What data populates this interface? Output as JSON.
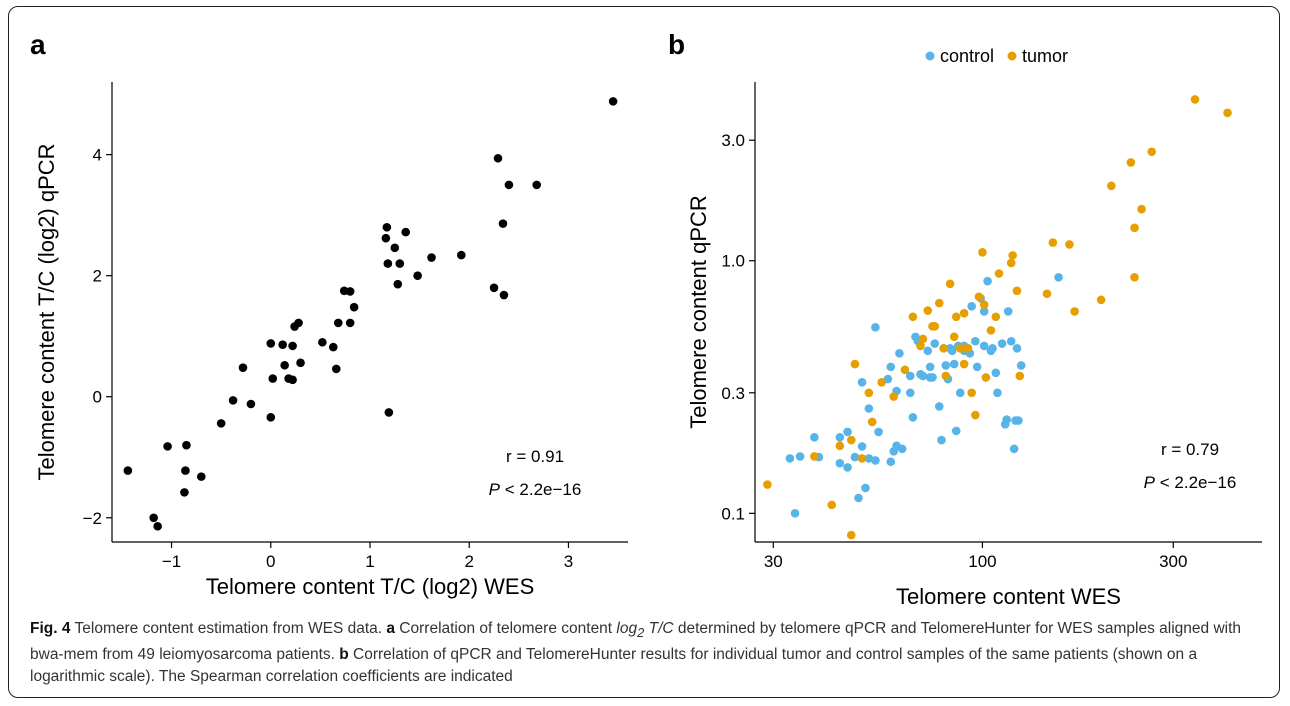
{
  "chart_data": [
    {
      "type": "scatter",
      "panel_label": "a",
      "xlabel": "Telomere content T/C (log2) WES",
      "ylabel": "Telomere content T/C (log2) qPCR",
      "xlim": [
        -1.6,
        3.6
      ],
      "ylim": [
        -2.4,
        5.2
      ],
      "x_ticks": [
        -1,
        1,
        3
      ],
      "x_tick_labels": [
        "−1",
        "1",
        "3"
      ],
      "x_minor_ticks": [
        0,
        2
      ],
      "x_minor_tick_labels": [
        "0",
        "2"
      ],
      "y_ticks": [
        -2,
        0,
        2,
        4
      ],
      "y_tick_labels": [
        "−2",
        "0",
        "2",
        "4"
      ],
      "grid": false,
      "annotation_r": "r = 0.91",
      "annotation_p_symbol": "P",
      "annotation_p_rest": " < 2.2e−16",
      "series": [
        {
          "color": "#000000",
          "points": [
            [
              -1.44,
              -1.22
            ],
            [
              -1.18,
              -2.0
            ],
            [
              -1.14,
              -2.14
            ],
            [
              -1.04,
              -0.82
            ],
            [
              -0.87,
              -1.58
            ],
            [
              -0.86,
              -1.22
            ],
            [
              -0.85,
              -0.8
            ],
            [
              -0.7,
              -1.32
            ],
            [
              -0.5,
              -0.44
            ],
            [
              -0.38,
              -0.06
            ],
            [
              -0.28,
              0.48
            ],
            [
              -0.2,
              -0.12
            ],
            [
              0.0,
              0.88
            ],
            [
              0.0,
              -0.34
            ],
            [
              0.02,
              0.3
            ],
            [
              0.12,
              0.86
            ],
            [
              0.14,
              0.52
            ],
            [
              0.18,
              0.3
            ],
            [
              0.22,
              0.84
            ],
            [
              0.22,
              0.28
            ],
            [
              0.24,
              1.16
            ],
            [
              0.28,
              1.22
            ],
            [
              0.3,
              0.56
            ],
            [
              0.52,
              0.9
            ],
            [
              0.63,
              0.82
            ],
            [
              0.66,
              0.46
            ],
            [
              0.68,
              1.22
            ],
            [
              0.74,
              1.75
            ],
            [
              0.8,
              1.22
            ],
            [
              0.8,
              1.74
            ],
            [
              0.84,
              1.48
            ],
            [
              1.16,
              2.62
            ],
            [
              1.17,
              2.8
            ],
            [
              1.18,
              2.2
            ],
            [
              1.19,
              -0.26
            ],
            [
              1.25,
              2.46
            ],
            [
              1.28,
              1.86
            ],
            [
              1.3,
              2.2
            ],
            [
              1.36,
              2.72
            ],
            [
              1.48,
              2.0
            ],
            [
              1.62,
              2.3
            ],
            [
              1.92,
              2.34
            ],
            [
              2.25,
              1.8
            ],
            [
              2.29,
              3.94
            ],
            [
              2.34,
              2.86
            ],
            [
              2.35,
              1.68
            ],
            [
              2.4,
              3.5
            ],
            [
              2.68,
              3.5
            ],
            [
              3.45,
              4.88
            ]
          ]
        }
      ]
    },
    {
      "type": "scatter",
      "panel_label": "b",
      "scale": "log",
      "xlabel": "Telomere content WES",
      "ylabel": "Telomere content qPCR",
      "xlim": [
        27,
        500
      ],
      "ylim": [
        0.077,
        5.1
      ],
      "x_ticks": [
        30,
        100,
        300
      ],
      "x_tick_labels": [
        "30",
        "100",
        "300"
      ],
      "y_ticks": [
        0.1,
        0.3,
        1.0,
        3.0
      ],
      "y_tick_labels": [
        "0.1",
        "0.3",
        "1.0",
        "3.0"
      ],
      "grid": false,
      "legend_position": "top",
      "annotation_r": "r = 0.79",
      "annotation_p_symbol": "P",
      "annotation_p_rest": " < 2.2e−16",
      "series": [
        {
          "name": "control",
          "color": "#56B4E9",
          "points": [
            [
              33,
              0.165
            ],
            [
              34,
              0.1
            ],
            [
              35,
              0.168
            ],
            [
              38,
              0.2
            ],
            [
              39,
              0.167
            ],
            [
              44,
              0.2
            ],
            [
              44,
              0.158
            ],
            [
              46,
              0.21
            ],
            [
              46,
              0.152
            ],
            [
              48,
              0.167
            ],
            [
              49,
              0.115
            ],
            [
              50,
              0.33
            ],
            [
              50,
              0.184
            ],
            [
              51,
              0.126
            ],
            [
              52,
              0.165
            ],
            [
              52,
              0.26
            ],
            [
              54,
              0.545
            ],
            [
              54,
              0.162
            ],
            [
              55,
              0.21
            ],
            [
              58,
              0.34
            ],
            [
              59,
              0.16
            ],
            [
              59,
              0.38
            ],
            [
              60,
              0.176
            ],
            [
              61,
              0.185
            ],
            [
              61,
              0.305
            ],
            [
              62,
              0.43
            ],
            [
              63,
              0.18
            ],
            [
              66,
              0.3
            ],
            [
              66,
              0.35
            ],
            [
              67,
              0.24
            ],
            [
              68,
              0.5
            ],
            [
              69,
              0.48
            ],
            [
              70,
              0.355
            ],
            [
              71,
              0.35
            ],
            [
              73,
              0.44
            ],
            [
              74,
              0.38
            ],
            [
              74,
              0.345
            ],
            [
              75,
              0.345
            ],
            [
              76,
              0.47
            ],
            [
              78,
              0.265
            ],
            [
              79,
              0.195
            ],
            [
              80,
              0.45
            ],
            [
              81,
              0.385
            ],
            [
              82,
              0.34
            ],
            [
              83,
              0.45
            ],
            [
              84,
              0.44
            ],
            [
              85,
              0.39
            ],
            [
              86,
              0.212
            ],
            [
              87,
              0.46
            ],
            [
              88,
              0.3
            ],
            [
              90,
              0.44
            ],
            [
              90,
              0.46
            ],
            [
              92,
              0.45
            ],
            [
              93,
              0.43
            ],
            [
              94,
              0.66
            ],
            [
              96,
              0.48
            ],
            [
              97,
              0.38
            ],
            [
              99,
              0.71
            ],
            [
              101,
              0.63
            ],
            [
              101,
              0.46
            ],
            [
              103,
              0.83
            ],
            [
              105,
              0.44
            ],
            [
              106,
              0.45
            ],
            [
              108,
              0.36
            ],
            [
              109,
              0.3
            ],
            [
              112,
              0.47
            ],
            [
              114,
              0.225
            ],
            [
              115,
              0.235
            ],
            [
              116,
              0.63
            ],
            [
              118,
              0.48
            ],
            [
              120,
              0.18
            ],
            [
              121,
              0.233
            ],
            [
              122,
              0.45
            ],
            [
              123,
              0.233
            ],
            [
              125,
              0.385
            ],
            [
              155,
              0.86
            ]
          ]
        },
        {
          "name": "tumor",
          "color": "#E69F00",
          "points": [
            [
              29,
              0.13
            ],
            [
              38,
              0.168
            ],
            [
              42,
              0.108
            ],
            [
              44,
              0.185
            ],
            [
              47,
              0.195
            ],
            [
              47,
              0.082
            ],
            [
              48,
              0.39
            ],
            [
              50,
              0.165
            ],
            [
              52,
              0.3
            ],
            [
              53,
              0.23
            ],
            [
              56,
              0.33
            ],
            [
              60,
              0.29
            ],
            [
              64,
              0.37
            ],
            [
              67,
              0.6
            ],
            [
              70,
              0.46
            ],
            [
              71,
              0.49
            ],
            [
              73,
              0.635
            ],
            [
              75,
              0.55
            ],
            [
              76,
              0.55
            ],
            [
              78,
              0.68
            ],
            [
              80,
              0.45
            ],
            [
              81,
              0.35
            ],
            [
              83,
              0.81
            ],
            [
              85,
              0.5
            ],
            [
              86,
              0.6
            ],
            [
              88,
              0.45
            ],
            [
              90,
              0.62
            ],
            [
              90,
              0.39
            ],
            [
              91,
              0.45
            ],
            [
              92,
              0.45
            ],
            [
              94,
              0.3
            ],
            [
              96,
              0.245
            ],
            [
              98,
              0.72
            ],
            [
              100,
              1.08
            ],
            [
              101,
              0.67
            ],
            [
              102,
              0.345
            ],
            [
              105,
              0.53
            ],
            [
              108,
              0.6
            ],
            [
              110,
              0.89
            ],
            [
              118,
              0.98
            ],
            [
              119,
              1.05
            ],
            [
              122,
              0.76
            ],
            [
              124,
              0.35
            ],
            [
              145,
              0.74
            ],
            [
              150,
              1.18
            ],
            [
              165,
              1.16
            ],
            [
              170,
              0.63
            ],
            [
              198,
              0.7
            ],
            [
              210,
              1.98
            ],
            [
              235,
              2.45
            ],
            [
              240,
              1.35
            ],
            [
              240,
              0.86
            ],
            [
              250,
              1.6
            ],
            [
              265,
              2.7
            ],
            [
              340,
              4.35
            ],
            [
              410,
              3.85
            ]
          ]
        }
      ]
    }
  ],
  "caption": {
    "fig_label": "Fig. 4",
    "title": " Telomere content estimation from WES data. ",
    "a_label": "a",
    "a_text_1": " Correlation of telomere content ",
    "a_italic_1": "log",
    "a_sub": "2",
    "a_italic_2": " T/C",
    "a_text_2": " determined by telomere qPCR and TelomereHunter for WES samples aligned with bwa-mem from 49 leiomyosarcoma patients. ",
    "b_label": "b",
    "b_text": " Correlation of qPCR and TelomereHunter results for individual tumor and control samples of the same patients (shown on a logarithmic scale). The Spearman correlation coefficients are indicated"
  }
}
